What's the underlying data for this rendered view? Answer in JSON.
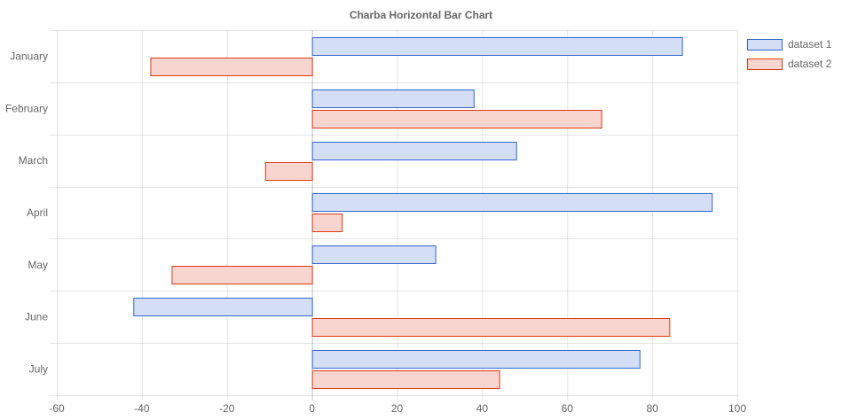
{
  "chart_data": {
    "type": "bar",
    "orientation": "horizontal",
    "title": "Charba Horizontal Bar Chart",
    "categories": [
      "January",
      "February",
      "March",
      "April",
      "May",
      "June",
      "July"
    ],
    "series": [
      {
        "name": "dataset 1",
        "values": [
          87,
          38,
          48,
          94,
          29,
          -42,
          77
        ],
        "fill": "#d4def5",
        "stroke": "#3366cc"
      },
      {
        "name": "dataset 2",
        "values": [
          -38,
          68,
          -11,
          7,
          -33,
          84,
          44
        ],
        "fill": "#f8d6cf",
        "stroke": "#dc3912"
      }
    ],
    "xlim": [
      -60,
      100
    ],
    "xticks": [
      -60,
      -40,
      -20,
      0,
      20,
      40,
      60,
      80,
      100
    ],
    "grid": true,
    "legend_position": "top-right"
  }
}
